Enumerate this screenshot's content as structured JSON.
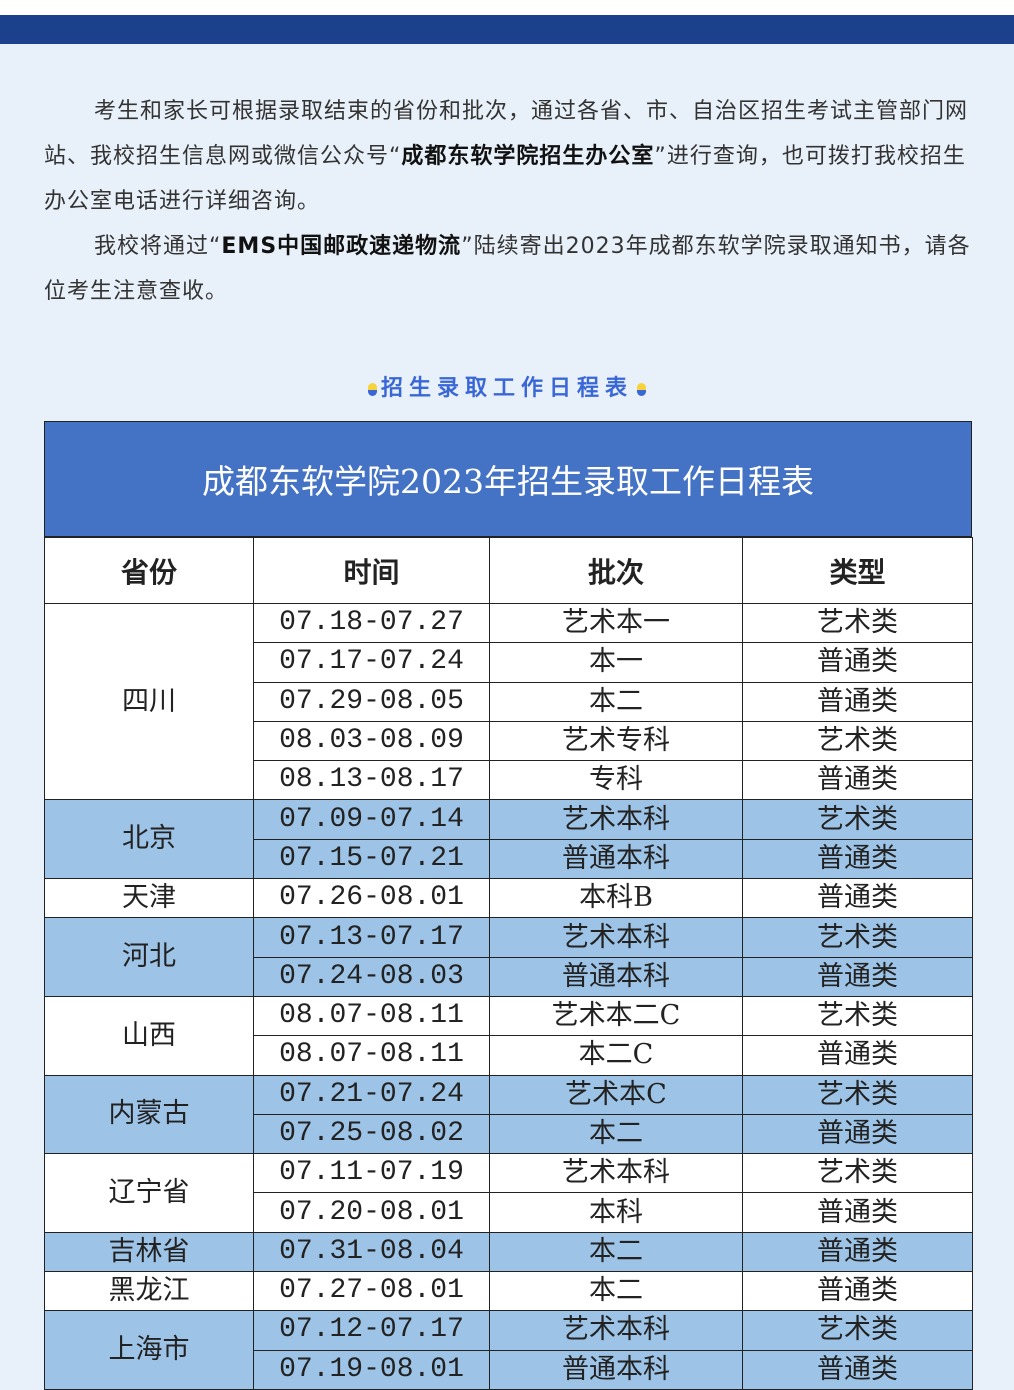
{
  "intro": {
    "p1_a": "考生和家长可根据录取结束的省份和批次，通过各省、市、自治区招生考试主管部门网站、我校招生信息网或微信公众号“",
    "p1_bold": "成都东软学院招生办公室",
    "p1_b": "”进行查询，也可拨打我校招生办公室电话进行详细咨询。",
    "p2_a": "我校将通过“",
    "p2_bold": "EMS中国邮政速递物流",
    "p2_b": "”陆续寄出2023年成都东软学院录取通知书，请各位考生注意查收。"
  },
  "section_title": "招生录取工作日程表",
  "colors": {
    "band": "#1c418c",
    "title_bg": "#4472c4",
    "row_highlight": "#9dc3e6",
    "accent": "#3a67d6"
  },
  "table": {
    "title": "成都东软学院2023年招生录取工作日程表",
    "headers": [
      "省份",
      "时间",
      "批次",
      "类型"
    ],
    "groups": [
      {
        "province": "四川",
        "rows": [
          [
            "07.18-07.27",
            "艺术本一",
            "艺术类"
          ],
          [
            "07.17-07.24",
            "本一",
            "普通类"
          ],
          [
            "07.29-08.05",
            "本二",
            "普通类"
          ],
          [
            "08.03-08.09",
            "艺术专科",
            "艺术类"
          ],
          [
            "08.13-08.17",
            "专科",
            "普通类"
          ]
        ]
      },
      {
        "province": "北京",
        "rows": [
          [
            "07.09-07.14",
            "艺术本科",
            "艺术类"
          ],
          [
            "07.15-07.21",
            "普通本科",
            "普通类"
          ]
        ]
      },
      {
        "province": "天津",
        "rows": [
          [
            "07.26-08.01",
            "本科B",
            "普通类"
          ]
        ]
      },
      {
        "province": "河北",
        "rows": [
          [
            "07.13-07.17",
            "艺术本科",
            "艺术类"
          ],
          [
            "07.24-08.03",
            "普通本科",
            "普通类"
          ]
        ]
      },
      {
        "province": "山西",
        "rows": [
          [
            "08.07-08.11",
            "艺术本二C",
            "艺术类"
          ],
          [
            "08.07-08.11",
            "本二C",
            "普通类"
          ]
        ]
      },
      {
        "province": "内蒙古",
        "rows": [
          [
            "07.21-07.24",
            "艺术本C",
            "艺术类"
          ],
          [
            "07.25-08.02",
            "本二",
            "普通类"
          ]
        ]
      },
      {
        "province": "辽宁省",
        "rows": [
          [
            "07.11-07.19",
            "艺术本科",
            "艺术类"
          ],
          [
            "07.20-08.01",
            "本科",
            "普通类"
          ]
        ]
      },
      {
        "province": "吉林省",
        "rows": [
          [
            "07.31-08.04",
            "本二",
            "普通类"
          ]
        ]
      },
      {
        "province": "黑龙江",
        "rows": [
          [
            "07.27-08.01",
            "本二",
            "普通类"
          ]
        ]
      },
      {
        "province": "上海市",
        "rows": [
          [
            "07.12-07.17",
            "艺术本科",
            "艺术类"
          ],
          [
            "07.19-08.01",
            "普通本科",
            "普通类"
          ]
        ]
      }
    ]
  }
}
